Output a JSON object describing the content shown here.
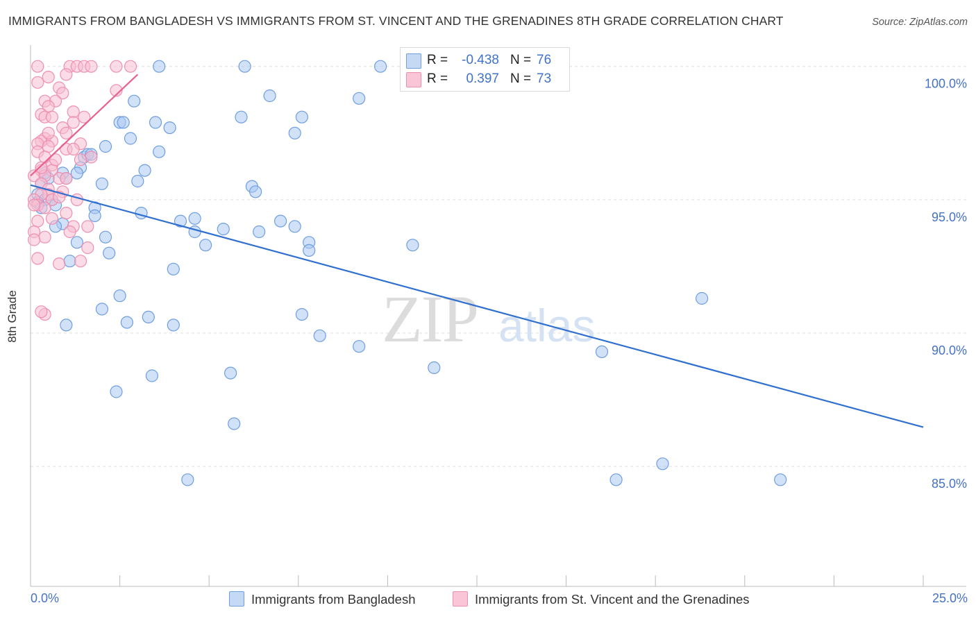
{
  "title": "IMMIGRANTS FROM BANGLADESH VS IMMIGRANTS FROM ST. VINCENT AND THE GRENADINES 8TH GRADE CORRELATION CHART",
  "source": "Source: ZipAtlas.com",
  "watermark": {
    "zip": "ZIP",
    "atlas": "atlas"
  },
  "legend": {
    "r_label": "R =",
    "n_label": "N =",
    "rows": [
      {
        "r_value": "-0.438",
        "n_value": "76"
      },
      {
        "r_value": "0.397",
        "n_value": "73"
      }
    ]
  },
  "bottom_legend": [
    "Immigrants from Bangladesh",
    "Immigrants from St. Vincent and the Grenadines"
  ],
  "colors": {
    "blue_fill": "#aac8f2",
    "blue_stroke": "#6f9ee0",
    "blue_line": "#2f6fd0",
    "pink_fill": "#f7bdd0",
    "pink_stroke": "#ee8fb0",
    "pink_line": "#e8608e",
    "tick_label": "#4472c4",
    "grid": "#dddddd"
  },
  "chart_data": {
    "type": "scatter",
    "title": "IMMIGRANTS FROM BANGLADESH VS IMMIGRANTS FROM ST. VINCENT AND THE GRENADINES 8TH GRADE CORRELATION CHART",
    "xlabel": "",
    "ylabel": "8th Grade",
    "xlim": [
      0,
      25
    ],
    "ylim": [
      80.5,
      100.8
    ],
    "x_tick_labels": [
      "0.0%",
      "25.0%"
    ],
    "y_ticks": [
      85,
      90,
      95,
      100
    ],
    "y_tick_labels": [
      "85.0%",
      "90.0%",
      "95.0%",
      "100.0%"
    ],
    "grid": true,
    "series": [
      {
        "name": "Immigrants from Bangladesh",
        "r": -0.438,
        "n": 76,
        "trend": {
          "x": [
            0.0,
            25.0
          ],
          "y": [
            95.55,
            86.47
          ]
        },
        "points": [
          [
            3.6,
            100.0
          ],
          [
            6.0,
            100.0
          ],
          [
            9.8,
            100.0
          ],
          [
            6.7,
            98.9
          ],
          [
            9.2,
            98.8
          ],
          [
            2.9,
            98.7
          ],
          [
            5.9,
            98.1
          ],
          [
            7.6,
            98.1
          ],
          [
            2.5,
            97.9
          ],
          [
            2.6,
            97.9
          ],
          [
            3.5,
            97.9
          ],
          [
            3.9,
            97.7
          ],
          [
            7.4,
            97.5
          ],
          [
            2.8,
            97.3
          ],
          [
            2.1,
            97.0
          ],
          [
            3.6,
            96.8
          ],
          [
            1.5,
            96.6
          ],
          [
            1.6,
            96.7
          ],
          [
            1.7,
            96.7
          ],
          [
            1.4,
            96.2
          ],
          [
            3.2,
            96.1
          ],
          [
            1.3,
            96.0
          ],
          [
            0.4,
            96.0
          ],
          [
            0.9,
            96.0
          ],
          [
            0.3,
            95.6
          ],
          [
            0.5,
            95.8
          ],
          [
            1.0,
            95.8
          ],
          [
            2.0,
            95.6
          ],
          [
            3.0,
            95.7
          ],
          [
            6.2,
            95.5
          ],
          [
            6.3,
            95.3
          ],
          [
            0.2,
            95.2
          ],
          [
            0.4,
            95.0
          ],
          [
            0.6,
            95.0
          ],
          [
            0.2,
            94.9
          ],
          [
            0.3,
            94.7
          ],
          [
            0.7,
            94.8
          ],
          [
            1.8,
            94.7
          ],
          [
            3.1,
            94.5
          ],
          [
            1.8,
            94.4
          ],
          [
            0.9,
            94.1
          ],
          [
            0.7,
            94.0
          ],
          [
            4.2,
            94.2
          ],
          [
            4.6,
            94.3
          ],
          [
            7.0,
            94.2
          ],
          [
            4.6,
            93.8
          ],
          [
            5.4,
            93.9
          ],
          [
            6.4,
            93.8
          ],
          [
            7.4,
            94.0
          ],
          [
            2.1,
            93.6
          ],
          [
            1.3,
            93.4
          ],
          [
            7.8,
            93.4
          ],
          [
            4.9,
            93.3
          ],
          [
            10.7,
            93.3
          ],
          [
            2.2,
            93.0
          ],
          [
            7.8,
            93.1
          ],
          [
            1.1,
            92.7
          ],
          [
            4.0,
            92.4
          ],
          [
            18.8,
            91.3
          ],
          [
            2.5,
            91.4
          ],
          [
            2.0,
            90.9
          ],
          [
            3.3,
            90.6
          ],
          [
            7.6,
            90.7
          ],
          [
            2.7,
            90.4
          ],
          [
            1.0,
            90.3
          ],
          [
            4.0,
            90.3
          ],
          [
            8.1,
            89.9
          ],
          [
            9.2,
            89.5
          ],
          [
            16.0,
            89.3
          ],
          [
            11.3,
            88.7
          ],
          [
            5.6,
            88.5
          ],
          [
            3.4,
            88.4
          ],
          [
            2.4,
            87.8
          ],
          [
            5.7,
            86.6
          ],
          [
            17.7,
            85.1
          ],
          [
            4.4,
            84.5
          ],
          [
            16.4,
            84.5
          ],
          [
            21.0,
            84.5
          ]
        ]
      },
      {
        "name": "Immigrants from St. Vincent and the Grenadines",
        "r": 0.397,
        "n": 73,
        "trend": {
          "x": [
            0.0,
            3.0
          ],
          "y": [
            95.9,
            99.7
          ]
        },
        "points": [
          [
            1.1,
            100.0
          ],
          [
            1.3,
            100.0
          ],
          [
            1.5,
            100.0
          ],
          [
            1.7,
            100.0
          ],
          [
            2.4,
            100.0
          ],
          [
            2.8,
            100.0
          ],
          [
            0.2,
            100.0
          ],
          [
            1.0,
            99.7
          ],
          [
            0.5,
            99.6
          ],
          [
            0.8,
            99.2
          ],
          [
            2.4,
            99.1
          ],
          [
            0.9,
            99.0
          ],
          [
            0.4,
            98.7
          ],
          [
            0.7,
            98.7
          ],
          [
            0.5,
            98.5
          ],
          [
            1.2,
            98.3
          ],
          [
            0.3,
            98.2
          ],
          [
            0.4,
            98.1
          ],
          [
            0.6,
            98.1
          ],
          [
            1.5,
            98.1
          ],
          [
            1.2,
            97.9
          ],
          [
            0.9,
            97.7
          ],
          [
            1.0,
            97.5
          ],
          [
            0.4,
            97.3
          ],
          [
            0.3,
            97.2
          ],
          [
            0.6,
            97.2
          ],
          [
            0.2,
            97.1
          ],
          [
            0.5,
            97.0
          ],
          [
            1.4,
            97.1
          ],
          [
            1.0,
            96.9
          ],
          [
            1.2,
            96.9
          ],
          [
            0.2,
            96.8
          ],
          [
            0.4,
            96.6
          ],
          [
            1.7,
            96.6
          ],
          [
            1.4,
            96.5
          ],
          [
            0.6,
            96.3
          ],
          [
            0.3,
            96.1
          ],
          [
            0.6,
            96.1
          ],
          [
            0.1,
            95.9
          ],
          [
            0.4,
            95.9
          ],
          [
            0.8,
            95.8
          ],
          [
            1.0,
            95.8
          ],
          [
            0.3,
            95.6
          ],
          [
            0.5,
            95.4
          ],
          [
            0.9,
            95.3
          ],
          [
            0.5,
            95.2
          ],
          [
            0.3,
            95.2
          ],
          [
            0.1,
            95.0
          ],
          [
            0.6,
            95.0
          ],
          [
            1.3,
            95.0
          ],
          [
            0.2,
            94.8
          ],
          [
            0.4,
            94.7
          ],
          [
            0.1,
            94.8
          ],
          [
            1.0,
            94.5
          ],
          [
            0.2,
            94.2
          ],
          [
            1.6,
            94.0
          ],
          [
            1.2,
            94.0
          ],
          [
            0.1,
            93.8
          ],
          [
            0.4,
            93.6
          ],
          [
            0.1,
            93.5
          ],
          [
            1.6,
            93.2
          ],
          [
            0.2,
            92.8
          ],
          [
            1.4,
            92.7
          ],
          [
            0.8,
            92.6
          ],
          [
            0.4,
            90.7
          ],
          [
            0.3,
            90.8
          ],
          [
            0.5,
            97.5
          ],
          [
            0.7,
            96.5
          ],
          [
            0.8,
            95.1
          ],
          [
            1.1,
            93.8
          ],
          [
            0.2,
            99.4
          ],
          [
            0.3,
            96.2
          ],
          [
            0.6,
            94.3
          ]
        ]
      }
    ]
  }
}
